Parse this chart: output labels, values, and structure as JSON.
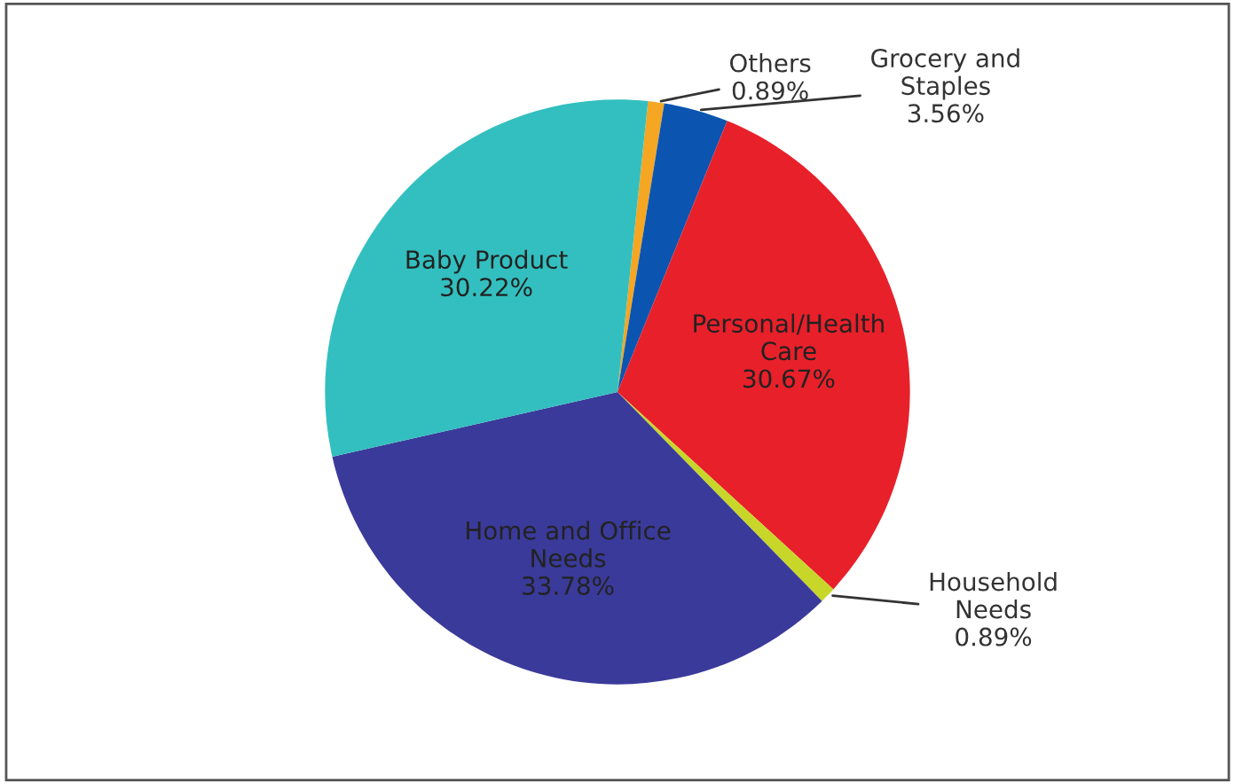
{
  "chart_data": {
    "type": "pie",
    "categories": [
      "Others",
      "Grocery and\nStaples",
      "Personal/Health\nCare",
      "Household\nNeeds",
      "Home and Office\nNeeds",
      "Baby Product"
    ],
    "values": [
      0.89,
      3.56,
      30.67,
      0.89,
      33.78,
      30.22
    ],
    "colors": [
      "#f5a623",
      "#0b55b0",
      "#e8202a",
      "#c8d62a",
      "#3a3a9a",
      "#33bfbf"
    ],
    "value_labels": [
      "0.89%",
      "3.56%",
      "30.67%",
      "0.89%",
      "33.78%",
      "30.22%"
    ],
    "legend": false
  }
}
